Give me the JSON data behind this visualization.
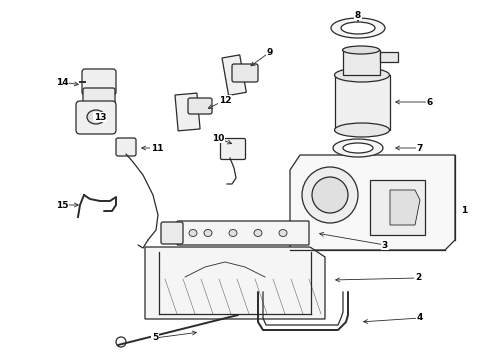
{
  "bg_color": "#ffffff",
  "line_color": "#2a2a2a",
  "label_color": "#000000",
  "figsize": [
    4.89,
    3.6
  ],
  "dpi": 100,
  "lw": 0.9
}
